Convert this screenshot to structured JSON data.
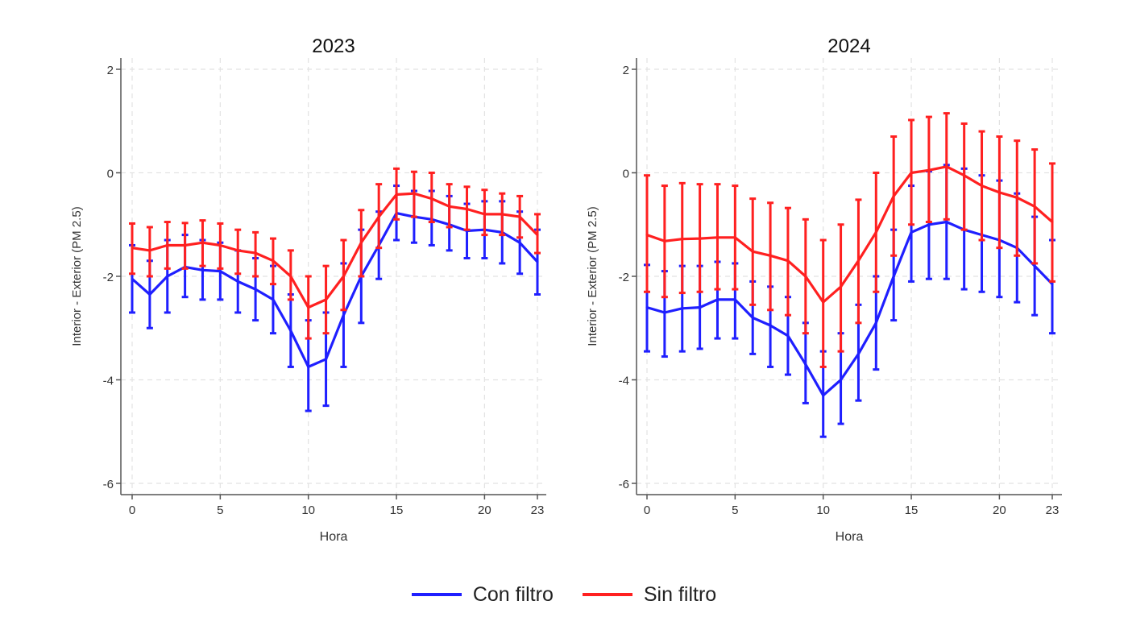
{
  "colors": {
    "con_filtro": "#1f1fff",
    "sin_filtro": "#ff2020"
  },
  "legend": [
    {
      "key": "con_filtro",
      "label": "Con filtro"
    },
    {
      "key": "sin_filtro",
      "label": "Sin filtro"
    }
  ],
  "chart_data": [
    {
      "type": "line",
      "title": "2023",
      "xlabel": "Hora",
      "ylabel": "Interior - Exterior (PM 2.5)",
      "xlim": [
        0,
        23
      ],
      "ylim": [
        -6,
        2
      ],
      "x_ticks": [
        0,
        5,
        10,
        15,
        20,
        23
      ],
      "y_ticks": [
        -6,
        -4,
        -2,
        0,
        2
      ],
      "grid": true,
      "x": [
        0,
        1,
        2,
        3,
        4,
        5,
        6,
        7,
        8,
        9,
        10,
        11,
        12,
        13,
        14,
        15,
        16,
        17,
        18,
        19,
        20,
        21,
        22,
        23
      ],
      "series": [
        {
          "key": "con_filtro",
          "name": "Con filtro",
          "values": [
            -2.05,
            -2.35,
            -2.0,
            -1.82,
            -1.88,
            -1.9,
            -2.1,
            -2.25,
            -2.45,
            -3.05,
            -3.75,
            -3.6,
            -2.75,
            -2.0,
            -1.4,
            -0.78,
            -0.85,
            -0.9,
            -1.0,
            -1.12,
            -1.1,
            -1.15,
            -1.35,
            -1.72
          ],
          "lower": [
            -2.7,
            -3.0,
            -2.7,
            -2.4,
            -2.45,
            -2.45,
            -2.7,
            -2.85,
            -3.1,
            -3.75,
            -4.6,
            -4.5,
            -3.75,
            -2.9,
            -2.05,
            -1.3,
            -1.35,
            -1.4,
            -1.5,
            -1.65,
            -1.65,
            -1.75,
            -1.95,
            -2.35
          ],
          "upper": [
            -1.4,
            -1.7,
            -1.3,
            -1.2,
            -1.3,
            -1.35,
            -1.5,
            -1.65,
            -1.8,
            -2.35,
            -2.85,
            -2.7,
            -1.75,
            -1.1,
            -0.75,
            -0.25,
            -0.35,
            -0.35,
            -0.45,
            -0.6,
            -0.55,
            -0.55,
            -0.75,
            -1.1
          ]
        },
        {
          "key": "sin_filtro",
          "name": "Sin filtro",
          "values": [
            -1.45,
            -1.5,
            -1.4,
            -1.4,
            -1.35,
            -1.4,
            -1.5,
            -1.55,
            -1.7,
            -2.0,
            -2.6,
            -2.45,
            -2.0,
            -1.35,
            -0.85,
            -0.42,
            -0.4,
            -0.5,
            -0.65,
            -0.7,
            -0.8,
            -0.8,
            -0.85,
            -1.2
          ],
          "lower": [
            -1.95,
            -2.0,
            -1.85,
            -1.85,
            -1.8,
            -1.85,
            -1.95,
            -2.0,
            -2.15,
            -2.45,
            -3.2,
            -3.1,
            -2.65,
            -2.0,
            -1.45,
            -0.9,
            -0.85,
            -0.95,
            -1.05,
            -1.1,
            -1.2,
            -1.2,
            -1.25,
            -1.55
          ],
          "upper": [
            -0.98,
            -1.05,
            -0.95,
            -0.97,
            -0.92,
            -0.98,
            -1.1,
            -1.15,
            -1.27,
            -1.5,
            -2.0,
            -1.8,
            -1.3,
            -0.72,
            -0.22,
            0.08,
            0.02,
            0.0,
            -0.22,
            -0.27,
            -0.33,
            -0.4,
            -0.45,
            -0.8
          ]
        }
      ]
    },
    {
      "type": "line",
      "title": "2024",
      "xlabel": "Hora",
      "ylabel": "Interior - Exterior (PM 2.5)",
      "xlim": [
        0,
        23
      ],
      "ylim": [
        -6,
        2
      ],
      "x_ticks": [
        0,
        5,
        10,
        15,
        20,
        23
      ],
      "y_ticks": [
        -6,
        -4,
        -2,
        0,
        2
      ],
      "grid": true,
      "x": [
        0,
        1,
        2,
        3,
        4,
        5,
        6,
        7,
        8,
        9,
        10,
        11,
        12,
        13,
        14,
        15,
        16,
        17,
        18,
        19,
        20,
        21,
        22,
        23
      ],
      "series": [
        {
          "key": "con_filtro",
          "name": "Con filtro",
          "values": [
            -2.6,
            -2.7,
            -2.62,
            -2.6,
            -2.45,
            -2.45,
            -2.8,
            -2.95,
            -3.15,
            -3.7,
            -4.3,
            -4.0,
            -3.5,
            -2.9,
            -2.0,
            -1.15,
            -1.0,
            -0.95,
            -1.1,
            -1.2,
            -1.3,
            -1.45,
            -1.8,
            -2.15
          ],
          "lower": [
            -3.45,
            -3.55,
            -3.45,
            -3.4,
            -3.2,
            -3.2,
            -3.5,
            -3.75,
            -3.9,
            -4.45,
            -5.1,
            -4.85,
            -4.4,
            -3.8,
            -2.85,
            -2.1,
            -2.05,
            -2.05,
            -2.25,
            -2.3,
            -2.4,
            -2.5,
            -2.75,
            -3.1
          ],
          "upper": [
            -1.78,
            -1.9,
            -1.8,
            -1.8,
            -1.72,
            -1.75,
            -2.1,
            -2.2,
            -2.4,
            -2.9,
            -3.45,
            -3.1,
            -2.55,
            -2.0,
            -1.1,
            -0.25,
            0.03,
            0.15,
            0.08,
            -0.05,
            -0.15,
            -0.4,
            -0.85,
            -1.3
          ]
        },
        {
          "key": "sin_filtro",
          "name": "Sin filtro",
          "values": [
            -1.2,
            -1.32,
            -1.28,
            -1.27,
            -1.25,
            -1.25,
            -1.52,
            -1.6,
            -1.7,
            -2.0,
            -2.5,
            -2.2,
            -1.7,
            -1.15,
            -0.45,
            0.0,
            0.05,
            0.12,
            -0.05,
            -0.25,
            -0.38,
            -0.48,
            -0.65,
            -0.95
          ],
          "lower": [
            -2.3,
            -2.4,
            -2.32,
            -2.3,
            -2.25,
            -2.25,
            -2.55,
            -2.65,
            -2.75,
            -3.1,
            -3.75,
            -3.45,
            -2.9,
            -2.3,
            -1.6,
            -1.0,
            -0.95,
            -0.9,
            -1.1,
            -1.3,
            -1.45,
            -1.6,
            -1.75,
            -2.1
          ],
          "upper": [
            -0.05,
            -0.25,
            -0.2,
            -0.22,
            -0.22,
            -0.25,
            -0.5,
            -0.58,
            -0.68,
            -0.9,
            -1.3,
            -1.0,
            -0.52,
            0.0,
            0.7,
            1.02,
            1.08,
            1.15,
            0.95,
            0.8,
            0.7,
            0.62,
            0.45,
            0.18
          ]
        }
      ]
    }
  ]
}
